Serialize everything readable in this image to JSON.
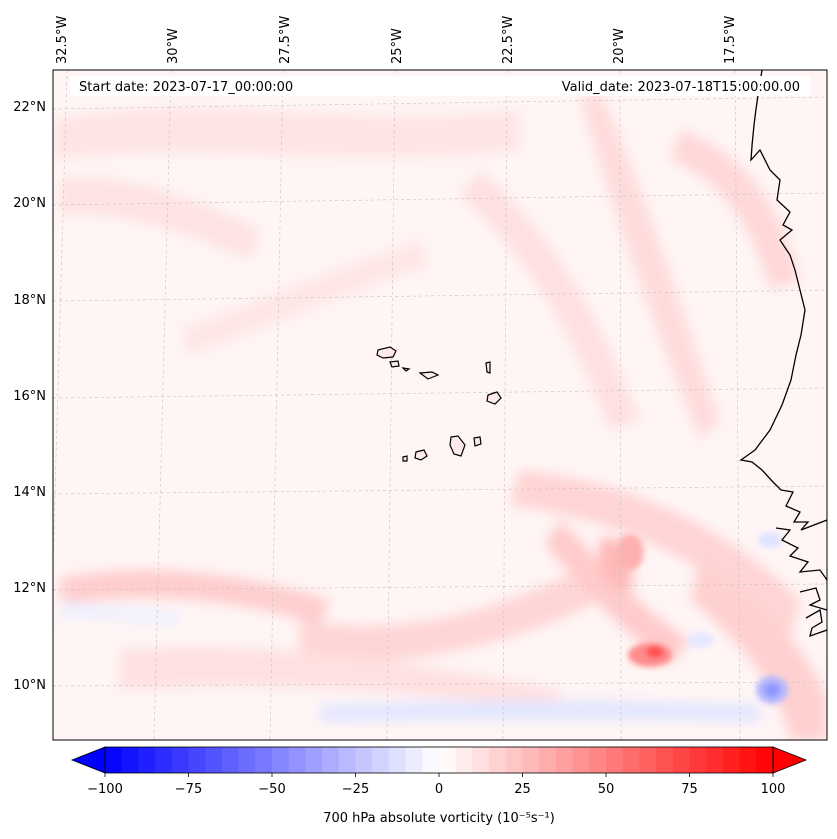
{
  "header": {
    "start_date": "Start date: 2023-07-17_00:00:00",
    "valid_date": "Valid_date: 2023-07-18T15:00:00.00"
  },
  "map": {
    "lon_labels": [
      "32.5°W",
      "30°W",
      "27.5°W",
      "25°W",
      "22.5°W",
      "20°W",
      "17.5°W"
    ],
    "lat_labels": [
      "22°N",
      "20°N",
      "18°N",
      "16°N",
      "14°N",
      "12°N",
      "10°N"
    ],
    "background_color": "#fff5f5",
    "gridlines": true
  },
  "colorbar": {
    "label": "700 hPa absolute vorticity (10⁻⁵s⁻¹)",
    "ticks": [
      "−100",
      "−75",
      "−50",
      "−25",
      "0",
      "25",
      "50",
      "75",
      "100"
    ],
    "min": -100,
    "max": 100,
    "cmap": "bwr",
    "extend": "both"
  }
}
